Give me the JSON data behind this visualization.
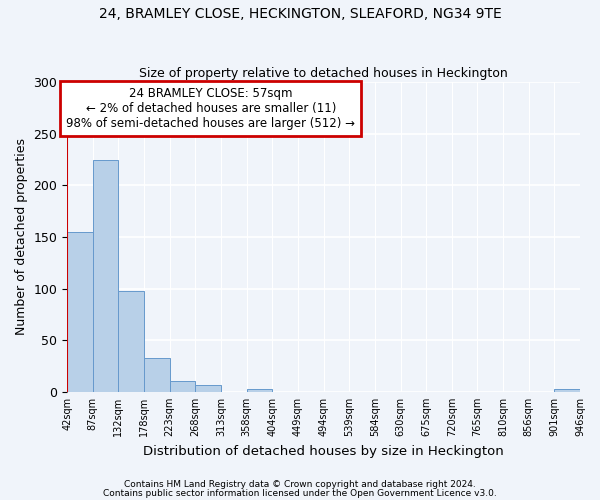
{
  "title1": "24, BRAMLEY CLOSE, HECKINGTON, SLEAFORD, NG34 9TE",
  "title2": "Size of property relative to detached houses in Heckington",
  "xlabel": "Distribution of detached houses by size in Heckington",
  "ylabel": "Number of detached properties",
  "footnote1": "Contains HM Land Registry data © Crown copyright and database right 2024.",
  "footnote2": "Contains public sector information licensed under the Open Government Licence v3.0.",
  "annotation_line1": "24 BRAMLEY CLOSE: 57sqm",
  "annotation_line2": "← 2% of detached houses are smaller (11)",
  "annotation_line3": "98% of semi-detached houses are larger (512) →",
  "bar_values": [
    155,
    225,
    98,
    33,
    11,
    7,
    0,
    3,
    0,
    0,
    0,
    0,
    0,
    0,
    0,
    0,
    0,
    0,
    0,
    3
  ],
  "x_labels": [
    "42sqm",
    "87sqm",
    "132sqm",
    "178sqm",
    "223sqm",
    "268sqm",
    "313sqm",
    "358sqm",
    "404sqm",
    "449sqm",
    "494sqm",
    "539sqm",
    "584sqm",
    "630sqm",
    "675sqm",
    "720sqm",
    "765sqm",
    "810sqm",
    "856sqm",
    "901sqm",
    "946sqm"
  ],
  "bar_color": "#b8d0e8",
  "bar_edge_color": "#6699cc",
  "background_color": "#f0f4fa",
  "ax_background": "#f0f4fa",
  "grid_color": "#ffffff",
  "annotation_box_color": "#ffffff",
  "annotation_border_color": "#cc0000",
  "red_line_color": "#cc0000",
  "ylim": [
    0,
    300
  ],
  "yticks": [
    0,
    50,
    100,
    150,
    200,
    250,
    300
  ],
  "red_line_x": -0.17
}
